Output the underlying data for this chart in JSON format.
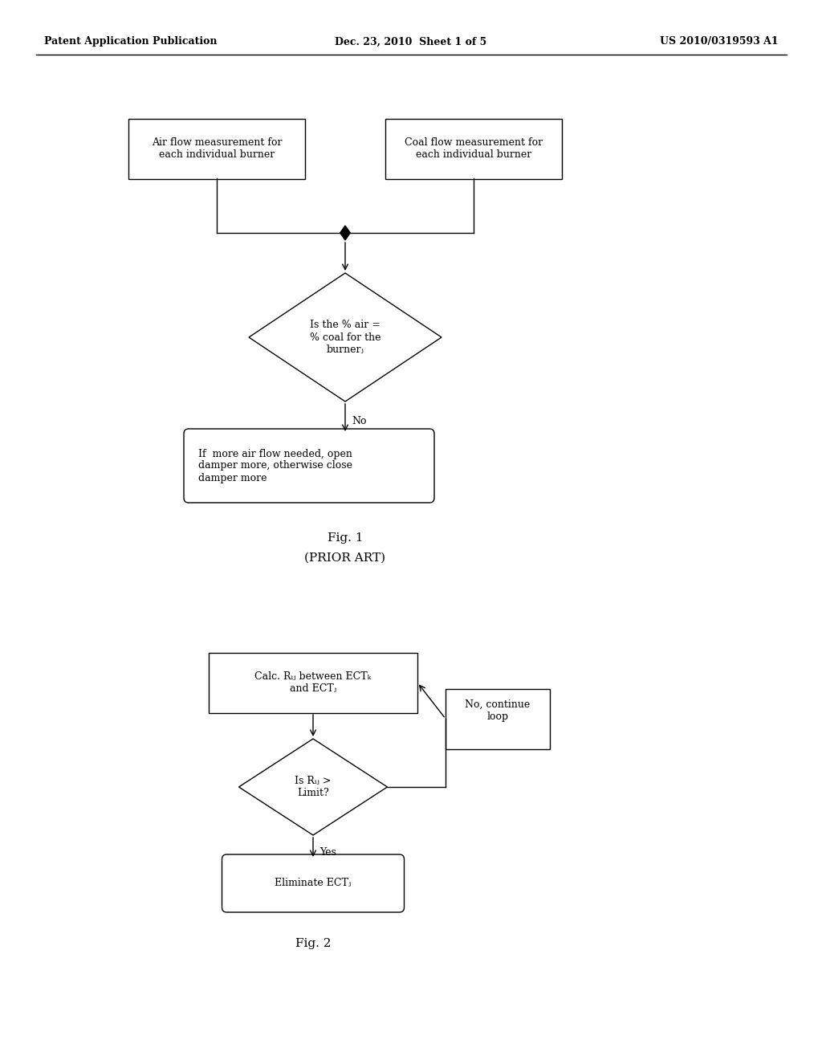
{
  "header_left": "Patent Application Publication",
  "header_center": "Dec. 23, 2010  Sheet 1 of 5",
  "header_right": "US 2010/0319593 A1",
  "fig1_title": "Fig. 1",
  "fig1_subtitle": "(PRIOR ART)",
  "fig2_title": "Fig. 2",
  "box1_text": "Air flow measurement for\neach individual burner",
  "box2_text": "Coal flow measurement for\neach individual burner",
  "diamond1_text": "Is the % air =\n% coal for the\nburnerⱼ",
  "box3_text": "If  more air flow needed, open\ndamper more, otherwise close\ndamper more",
  "no_label1": "No",
  "box4_text": "Calc. Rᵢⱼ between ECTₖ\nand ECTⱼ",
  "diamond2_text": "Is Rᵢⱼ >\nLimit?",
  "box5_text": "Eliminate ECTⱼ",
  "yes_label": "Yes",
  "no_label2": "No, continue\nloop",
  "bg_color": "#ffffff",
  "box_edge_color": "#000000",
  "text_color": "#000000",
  "line_color": "#000000"
}
